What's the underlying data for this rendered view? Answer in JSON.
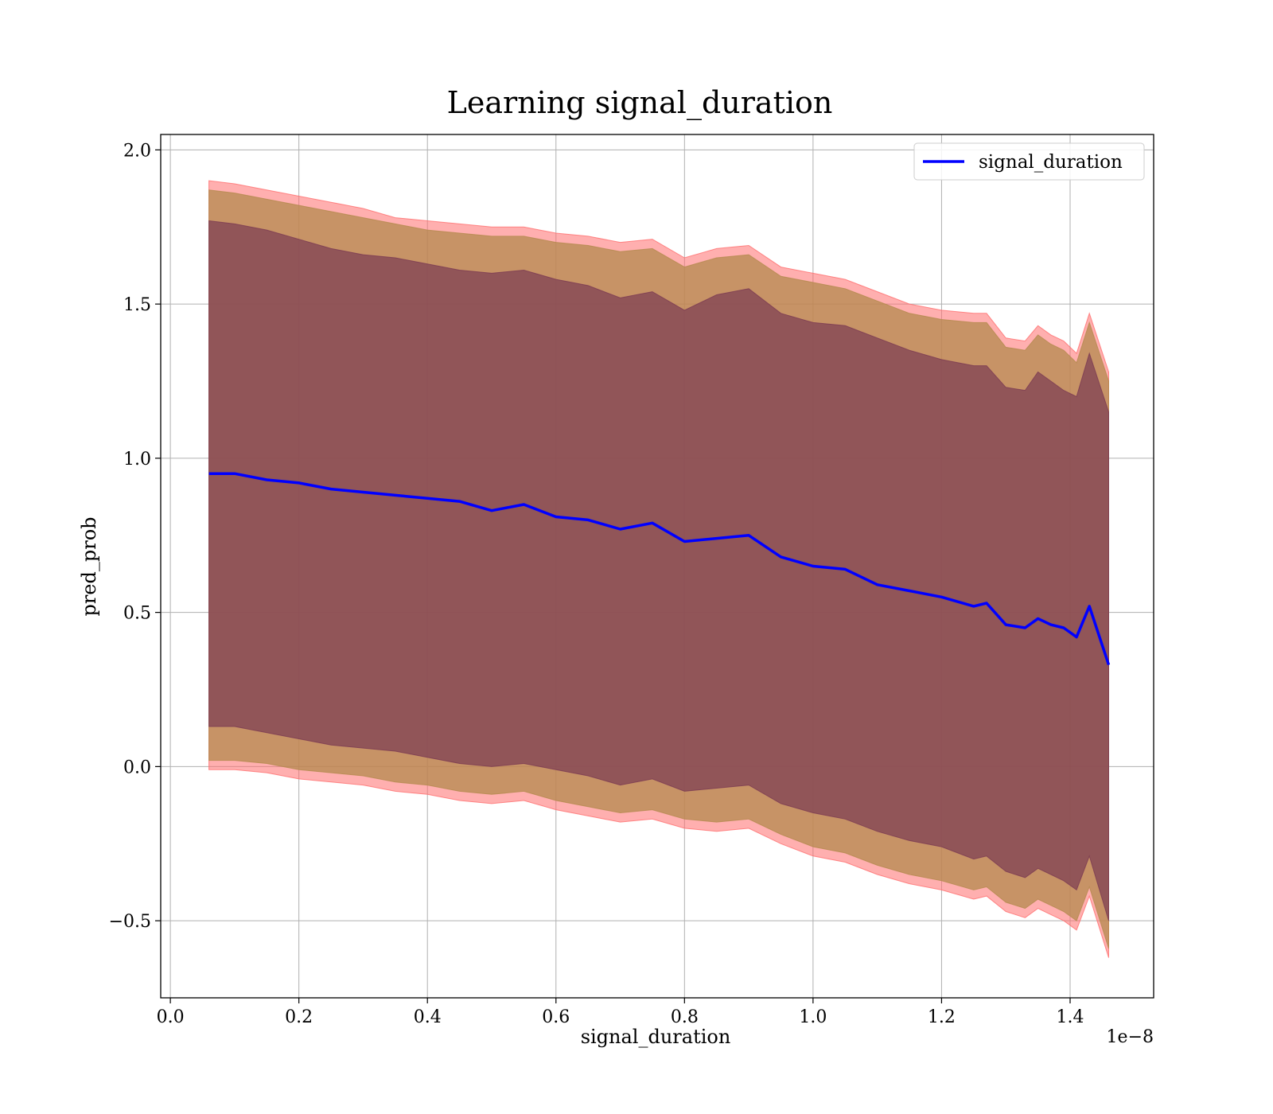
{
  "chart_data": {
    "type": "line",
    "title": "Learning signal_duration",
    "xlabel": "signal_duration",
    "ylabel": "pred_prob",
    "x_offset_label": "1e−8",
    "xlim": [
      -0.015,
      1.53
    ],
    "ylim": [
      -0.75,
      2.05
    ],
    "x_ticks": [
      0.0,
      0.2,
      0.4,
      0.6,
      0.8,
      1.0,
      1.2,
      1.4
    ],
    "x_tick_labels": [
      "0.0",
      "0.2",
      "0.4",
      "0.6",
      "0.8",
      "1.0",
      "1.2",
      "1.4"
    ],
    "y_ticks": [
      -0.5,
      0.0,
      0.5,
      1.0,
      1.5,
      2.0
    ],
    "y_tick_labels": [
      "−0.5",
      "0.0",
      "0.5",
      "1.0",
      "1.5",
      "2.0"
    ],
    "grid": true,
    "legend_position": "top-right",
    "colors": {
      "line": "#0000ff",
      "outer_band": "#ff6e6e",
      "middle_band": "#b48a4e",
      "inner_band": "#7a3a52"
    },
    "x": [
      0.06,
      0.1,
      0.15,
      0.2,
      0.25,
      0.3,
      0.35,
      0.4,
      0.45,
      0.5,
      0.55,
      0.6,
      0.65,
      0.7,
      0.75,
      0.8,
      0.85,
      0.9,
      0.95,
      1.0,
      1.05,
      1.1,
      1.15,
      1.2,
      1.25,
      1.27,
      1.3,
      1.33,
      1.35,
      1.37,
      1.39,
      1.41,
      1.43,
      1.46
    ],
    "series": [
      {
        "name": "signal_duration",
        "values": [
          0.95,
          0.95,
          0.93,
          0.92,
          0.9,
          0.89,
          0.88,
          0.87,
          0.86,
          0.83,
          0.85,
          0.81,
          0.8,
          0.77,
          0.79,
          0.73,
          0.74,
          0.75,
          0.68,
          0.65,
          0.64,
          0.59,
          0.57,
          0.55,
          0.52,
          0.53,
          0.46,
          0.45,
          0.48,
          0.46,
          0.45,
          0.42,
          0.52,
          0.33
        ]
      }
    ],
    "bands": [
      {
        "level": "outer",
        "upper": [
          1.9,
          1.89,
          1.87,
          1.85,
          1.83,
          1.81,
          1.78,
          1.77,
          1.76,
          1.75,
          1.75,
          1.73,
          1.72,
          1.7,
          1.71,
          1.65,
          1.68,
          1.69,
          1.62,
          1.6,
          1.58,
          1.54,
          1.5,
          1.48,
          1.47,
          1.47,
          1.39,
          1.38,
          1.43,
          1.4,
          1.38,
          1.34,
          1.47,
          1.28
        ],
        "lower": [
          -0.01,
          -0.01,
          -0.02,
          -0.04,
          -0.05,
          -0.06,
          -0.08,
          -0.09,
          -0.11,
          -0.12,
          -0.11,
          -0.14,
          -0.16,
          -0.18,
          -0.17,
          -0.2,
          -0.21,
          -0.2,
          -0.25,
          -0.29,
          -0.31,
          -0.35,
          -0.38,
          -0.4,
          -0.43,
          -0.42,
          -0.47,
          -0.49,
          -0.46,
          -0.48,
          -0.5,
          -0.53,
          -0.42,
          -0.62
        ]
      },
      {
        "level": "middle",
        "upper": [
          1.87,
          1.86,
          1.84,
          1.82,
          1.8,
          1.78,
          1.76,
          1.74,
          1.73,
          1.72,
          1.72,
          1.7,
          1.69,
          1.67,
          1.68,
          1.62,
          1.65,
          1.66,
          1.59,
          1.57,
          1.55,
          1.51,
          1.47,
          1.45,
          1.44,
          1.44,
          1.36,
          1.35,
          1.4,
          1.37,
          1.35,
          1.31,
          1.44,
          1.25
        ],
        "lower": [
          0.02,
          0.02,
          0.01,
          -0.01,
          -0.02,
          -0.03,
          -0.05,
          -0.06,
          -0.08,
          -0.09,
          -0.08,
          -0.11,
          -0.13,
          -0.15,
          -0.14,
          -0.17,
          -0.18,
          -0.17,
          -0.22,
          -0.26,
          -0.28,
          -0.32,
          -0.35,
          -0.37,
          -0.4,
          -0.39,
          -0.44,
          -0.46,
          -0.43,
          -0.45,
          -0.47,
          -0.5,
          -0.39,
          -0.59
        ]
      },
      {
        "level": "inner",
        "upper": [
          1.77,
          1.76,
          1.74,
          1.71,
          1.68,
          1.66,
          1.65,
          1.63,
          1.61,
          1.6,
          1.61,
          1.58,
          1.56,
          1.52,
          1.54,
          1.48,
          1.53,
          1.55,
          1.47,
          1.44,
          1.43,
          1.39,
          1.35,
          1.32,
          1.3,
          1.3,
          1.23,
          1.22,
          1.28,
          1.25,
          1.22,
          1.2,
          1.34,
          1.15
        ],
        "lower": [
          0.13,
          0.13,
          0.11,
          0.09,
          0.07,
          0.06,
          0.05,
          0.03,
          0.01,
          0.0,
          0.01,
          -0.01,
          -0.03,
          -0.06,
          -0.04,
          -0.08,
          -0.07,
          -0.06,
          -0.12,
          -0.15,
          -0.17,
          -0.21,
          -0.24,
          -0.26,
          -0.3,
          -0.29,
          -0.34,
          -0.36,
          -0.33,
          -0.35,
          -0.37,
          -0.4,
          -0.29,
          -0.5
        ]
      }
    ]
  }
}
